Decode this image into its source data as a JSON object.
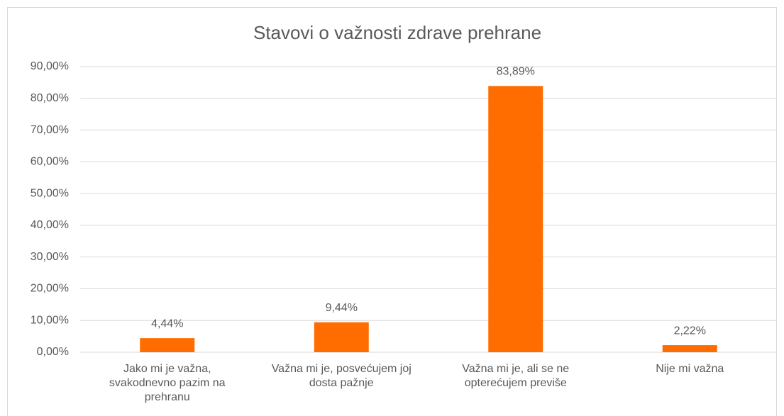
{
  "chart_data": {
    "type": "bar",
    "title": "Stavovi o važnosti zdrave prehrane",
    "categories": [
      "Jako mi je važna, svakodnevno pazim na prehranu",
      "Važna mi je, posvećujem joj dosta pažnje",
      "Važna mi je, ali se ne opterećujem previše",
      "Nije mi važna"
    ],
    "values": [
      4.44,
      9.44,
      83.89,
      2.22
    ],
    "value_labels": [
      "4,44%",
      "9,44%",
      "83,89%",
      "2,22%"
    ],
    "color": "#ff6d00",
    "ylim": [
      0,
      90
    ],
    "yticks": [
      {
        "value": 0,
        "label": "0,00%"
      },
      {
        "value": 10,
        "label": "10,00%"
      },
      {
        "value": 20,
        "label": "20,00%"
      },
      {
        "value": 30,
        "label": "30,00%"
      },
      {
        "value": 40,
        "label": "40,00%"
      },
      {
        "value": 50,
        "label": "50,00%"
      },
      {
        "value": 60,
        "label": "60,00%"
      },
      {
        "value": 70,
        "label": "70,00%"
      },
      {
        "value": 80,
        "label": "80,00%"
      },
      {
        "value": 90,
        "label": "90,00%"
      }
    ],
    "grid": true
  }
}
